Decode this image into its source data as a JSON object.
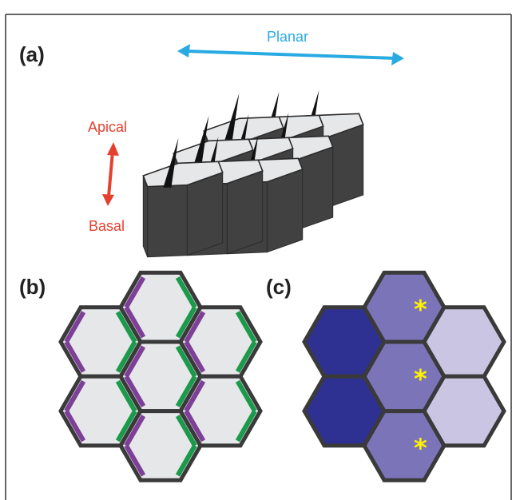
{
  "panels": {
    "a": {
      "label": "(a)"
    },
    "b": {
      "label": "(b)"
    },
    "c": {
      "label": "(c)"
    }
  },
  "axes": {
    "planar": "Planar",
    "apical": "Apical",
    "basal": "Basal"
  },
  "marker": "*",
  "colors": {
    "frame": "#333333",
    "planar_arrow": "#29abe2",
    "apical_basal_arrow": "#e5402e",
    "cell_top": "#e6e7e9",
    "cell_side": "#414142",
    "cell_edge": "#3a3a3a",
    "purple_edge": "#7e3f98",
    "green_edge": "#1a9a4a",
    "dark_blue": "#2e3192",
    "mid_purple": "#7c74b8",
    "light_lavender": "#c9c5e3",
    "asterisk": "#fff200"
  }
}
